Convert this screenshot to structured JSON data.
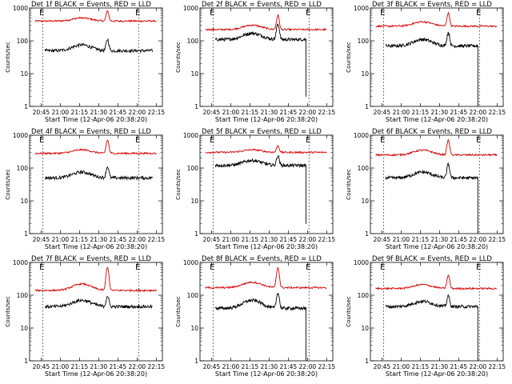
{
  "chart_data": {
    "type": "line",
    "yscale": "log",
    "ylim": [
      1,
      1000
    ],
    "y_ticks": [
      1,
      10,
      100,
      1000
    ],
    "x_tick_labels": [
      "20:45",
      "21:00",
      "21:15",
      "21:30",
      "21:45",
      "22:00",
      "22:15"
    ],
    "x_ticks_hours": [
      20.75,
      21.0,
      21.25,
      21.5,
      21.75,
      22.0,
      22.25
    ],
    "xlim_hours": [
      20.6,
      22.33
    ],
    "xlabel": "Start Time (12-Apr-06 20:38:20)",
    "ylabel": "Counts/sec",
    "corner_marks": {
      "left": "E",
      "right": "E"
    },
    "series_colors": {
      "events": "#000000",
      "lld": "#d40000"
    },
    "panels": [
      {
        "title": "Det 1f BLACK = Events, RED = LLD",
        "dashed_hours": [
          20.77,
          22.02
        ],
        "events": {
          "start": 20.8,
          "end": 22.2,
          "base": 50,
          "bump": 75,
          "peak": 110,
          "drop_to": null
        },
        "lld": {
          "start": 20.67,
          "end": 22.25,
          "base": 400,
          "bump": 500,
          "peak": 800
        }
      },
      {
        "title": "Det 2f BLACK = Events, RED = LLD",
        "dashed_hours": [
          20.77,
          22.02
        ],
        "events": {
          "start": 20.8,
          "end": 21.98,
          "base": 110,
          "bump": 170,
          "peak": 330,
          "drop_to": 2
        },
        "lld": {
          "start": 20.67,
          "end": 22.25,
          "base": 220,
          "bump": 300,
          "peak": 600
        }
      },
      {
        "title": "Det 3f BLACK = Events, RED = LLD",
        "dashed_hours": [
          20.77,
          22.02
        ],
        "events": {
          "start": 20.8,
          "end": 22.0,
          "base": 70,
          "bump": 110,
          "peak": 180,
          "drop_to": 1
        },
        "lld": {
          "start": 20.67,
          "end": 22.25,
          "base": 280,
          "bump": 380,
          "peak": 700
        }
      },
      {
        "title": "Det 4f BLACK = Events, RED = LLD",
        "dashed_hours": [
          20.77,
          22.02
        ],
        "events": {
          "start": 20.8,
          "end": 22.2,
          "base": 50,
          "bump": 75,
          "peak": 110,
          "drop_to": null
        },
        "lld": {
          "start": 20.67,
          "end": 22.25,
          "base": 280,
          "bump": 360,
          "peak": 700
        }
      },
      {
        "title": "Det 5f BLACK = Events, RED = LLD",
        "dashed_hours": [
          20.77,
          22.02
        ],
        "events": {
          "start": 20.8,
          "end": 21.98,
          "base": 120,
          "bump": 170,
          "peak": 240,
          "drop_to": 2
        },
        "lld": {
          "start": 20.67,
          "end": 22.25,
          "base": 300,
          "bump": 360,
          "peak": 480
        }
      },
      {
        "title": "Det 6f BLACK = Events, RED = LLD",
        "dashed_hours": [
          20.77,
          22.02
        ],
        "events": {
          "start": 20.8,
          "end": 22.0,
          "base": 50,
          "bump": 75,
          "peak": 130,
          "drop_to": 1
        },
        "lld": {
          "start": 20.67,
          "end": 22.25,
          "base": 250,
          "bump": 350,
          "peak": 700
        }
      },
      {
        "title": "Det 7f BLACK = Events, RED = LLD",
        "dashed_hours": [
          20.77,
          22.02
        ],
        "events": {
          "start": 20.8,
          "end": 22.2,
          "base": 45,
          "bump": 70,
          "peak": 95,
          "drop_to": null
        },
        "lld": {
          "start": 20.67,
          "end": 22.25,
          "base": 140,
          "bump": 220,
          "peak": 700
        }
      },
      {
        "title": "Det 8f BLACK = Events, RED = LLD",
        "dashed_hours": [
          20.77,
          22.02
        ],
        "events": {
          "start": 20.8,
          "end": 21.98,
          "base": 40,
          "bump": 70,
          "peak": 120,
          "drop_to": 1
        },
        "lld": {
          "start": 20.67,
          "end": 22.25,
          "base": 170,
          "bump": 250,
          "peak": 700
        }
      },
      {
        "title": "Det 9f BLACK = Events, RED = LLD",
        "dashed_hours": [
          20.77,
          22.02
        ],
        "events": {
          "start": 20.8,
          "end": 22.0,
          "base": 45,
          "bump": 65,
          "peak": 95,
          "drop_to": 1
        },
        "lld": {
          "start": 20.67,
          "end": 22.25,
          "base": 160,
          "bump": 210,
          "peak": 400
        }
      }
    ]
  }
}
